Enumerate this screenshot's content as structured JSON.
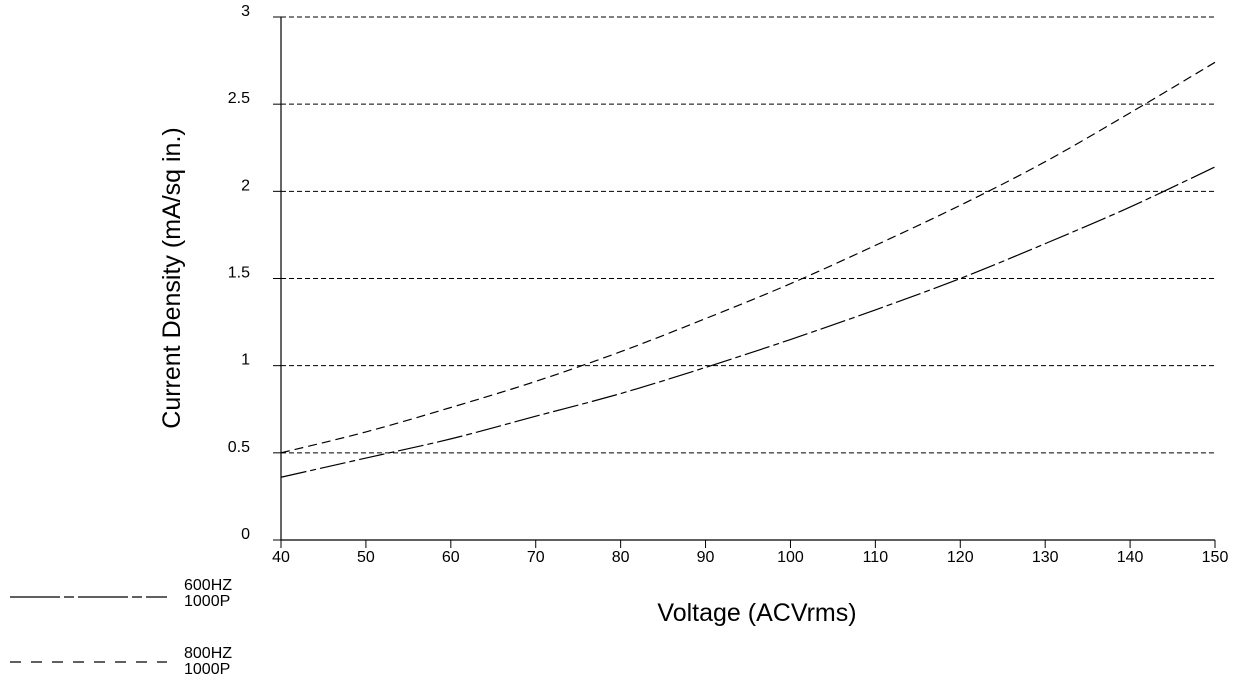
{
  "chart_data": {
    "type": "line",
    "xlabel": "Voltage (ACVrms)",
    "ylabel": "Current Density (mA/sq in.)",
    "xlim": [
      40,
      150
    ],
    "ylim": [
      0,
      3
    ],
    "x_ticks": [
      "40",
      "50",
      "60",
      "70",
      "80",
      "90",
      "100",
      "110",
      "120",
      "130",
      "140",
      "150"
    ],
    "y_ticks": [
      "0",
      "0.5",
      "1",
      "1.5",
      "2",
      "2.5",
      "3"
    ],
    "grid": "horizontal dashed",
    "legend_position": "bottom-left",
    "series": [
      {
        "name_line1": "600HZ",
        "name_line2": "1000P",
        "line_style": "long-dash-dot",
        "x": [
          40,
          50,
          60,
          70,
          80,
          90,
          100,
          110,
          120,
          130,
          140,
          150
        ],
        "y": [
          0.36,
          0.47,
          0.58,
          0.71,
          0.84,
          0.99,
          1.15,
          1.32,
          1.5,
          1.7,
          1.91,
          2.14
        ]
      },
      {
        "name_line1": "800HZ",
        "name_line2": "1000P",
        "line_style": "dashed",
        "x": [
          40,
          50,
          60,
          70,
          80,
          90,
          100,
          110,
          120,
          130,
          140,
          150
        ],
        "y": [
          0.5,
          0.62,
          0.76,
          0.91,
          1.08,
          1.27,
          1.47,
          1.69,
          1.92,
          2.17,
          2.45,
          2.74
        ]
      }
    ]
  }
}
